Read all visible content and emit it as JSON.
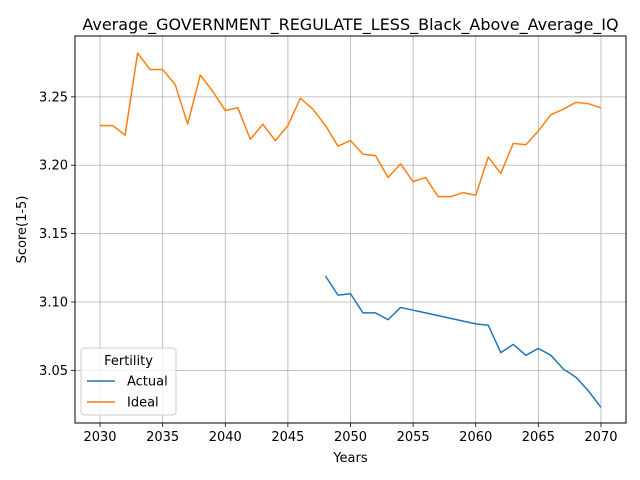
{
  "chart_data": {
    "type": "line",
    "title": "Average_GOVERNMENT_REGULATE_LESS_Black_Above_Average_IQ",
    "xlabel": "Years",
    "ylabel": "Score(1-5)",
    "xlim": [
      2028.0,
      2072.0
    ],
    "ylim": [
      3.0115,
      3.2945
    ],
    "xticks": [
      2030,
      2035,
      2040,
      2045,
      2050,
      2055,
      2060,
      2065,
      2070
    ],
    "yticks": [
      3.05,
      3.1,
      3.15,
      3.2,
      3.25
    ],
    "ytick_labels": [
      "3.05",
      "3.10",
      "3.15",
      "3.20",
      "3.25"
    ],
    "grid": true,
    "legend": {
      "title": "Fertility",
      "placement": "lower-left"
    },
    "series": [
      {
        "name": "Actual",
        "color": "#1f77b4",
        "x": [
          2048,
          2049,
          2050,
          2051,
          2052,
          2053,
          2054,
          2055,
          2056,
          2057,
          2058,
          2059,
          2060,
          2061,
          2062,
          2063,
          2064,
          2065,
          2066,
          2067,
          2068,
          2069,
          2070
        ],
        "y": [
          3.119,
          3.105,
          3.106,
          3.092,
          3.092,
          3.087,
          3.096,
          3.094,
          3.092,
          3.09,
          3.088,
          3.086,
          3.084,
          3.083,
          3.063,
          3.069,
          3.061,
          3.066,
          3.061,
          3.051,
          3.045,
          3.035,
          3.023
        ]
      },
      {
        "name": "Ideal",
        "color": "#ff7f0e",
        "x": [
          2030,
          2031,
          2032,
          2033,
          2034,
          2035,
          2036,
          2037,
          2038,
          2039,
          2040,
          2041,
          2042,
          2043,
          2044,
          2045,
          2046,
          2047,
          2048,
          2049,
          2050,
          2051,
          2052,
          2053,
          2054,
          2055,
          2056,
          2057,
          2058,
          2059,
          2060,
          2061,
          2062,
          2063,
          2064,
          2065,
          2066,
          2067,
          2068,
          2069,
          2070
        ],
        "y": [
          3.229,
          3.229,
          3.222,
          3.282,
          3.27,
          3.27,
          3.259,
          3.23,
          3.266,
          3.254,
          3.24,
          3.242,
          3.219,
          3.23,
          3.218,
          3.229,
          3.249,
          3.241,
          3.229,
          3.214,
          3.218,
          3.208,
          3.207,
          3.191,
          3.201,
          3.188,
          3.191,
          3.177,
          3.177,
          3.18,
          3.178,
          3.206,
          3.194,
          3.216,
          3.215,
          3.225,
          3.237,
          3.241,
          3.246,
          3.245,
          3.242
        ]
      }
    ]
  }
}
